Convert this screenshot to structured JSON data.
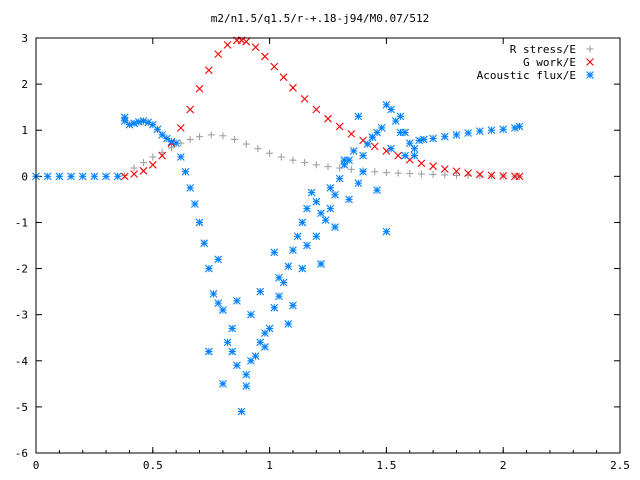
{
  "chart_data": {
    "type": "scatter",
    "title": "m2/n1.5/q1.5/r-+.18-j94/M0.07/512",
    "xlabel": "",
    "ylabel": "",
    "xlim": [
      0,
      2.5
    ],
    "ylim": [
      -6,
      3
    ],
    "x_ticks": [
      "0",
      "0.5",
      "1",
      "1.5",
      "2",
      "2.5"
    ],
    "y_ticks": [
      "3",
      "2",
      "1",
      "0",
      "-1",
      "-2",
      "-3",
      "-4",
      "-5",
      "-6"
    ],
    "legend_position": "top-right",
    "series": [
      {
        "name": "R stress/E",
        "marker": "plus",
        "color": "#a0a0a0",
        "x": [
          0.38,
          0.42,
          0.46,
          0.5,
          0.54,
          0.58,
          0.62,
          0.66,
          0.7,
          0.75,
          0.8,
          0.85,
          0.9,
          0.95,
          1.0,
          1.05,
          1.1,
          1.15,
          1.2,
          1.25,
          1.3,
          1.35,
          1.4,
          1.45,
          1.5,
          1.55,
          1.6,
          1.65,
          1.7,
          1.75,
          1.8,
          1.85,
          1.9,
          1.95,
          2.0,
          2.05,
          2.07
        ],
        "y": [
          0.02,
          0.18,
          0.3,
          0.42,
          0.52,
          0.62,
          0.72,
          0.8,
          0.86,
          0.9,
          0.88,
          0.8,
          0.7,
          0.6,
          0.5,
          0.42,
          0.35,
          0.3,
          0.25,
          0.21,
          0.18,
          0.15,
          0.12,
          0.1,
          0.08,
          0.07,
          0.06,
          0.05,
          0.04,
          0.03,
          0.02,
          0.02,
          0.01,
          0.01,
          0.01,
          0.0,
          0.0
        ]
      },
      {
        "name": "G work/E",
        "marker": "cross",
        "color": "#ff0000",
        "x": [
          0.38,
          0.42,
          0.46,
          0.5,
          0.54,
          0.58,
          0.62,
          0.66,
          0.7,
          0.74,
          0.78,
          0.82,
          0.86,
          0.88,
          0.9,
          0.94,
          0.98,
          1.02,
          1.06,
          1.1,
          1.15,
          1.2,
          1.25,
          1.3,
          1.35,
          1.4,
          1.45,
          1.5,
          1.55,
          1.6,
          1.65,
          1.7,
          1.75,
          1.8,
          1.85,
          1.9,
          1.95,
          2.0,
          2.05,
          2.07
        ],
        "y": [
          0.0,
          0.05,
          0.12,
          0.25,
          0.45,
          0.72,
          1.05,
          1.45,
          1.9,
          2.3,
          2.65,
          2.85,
          2.95,
          2.95,
          2.92,
          2.8,
          2.6,
          2.38,
          2.15,
          1.92,
          1.68,
          1.45,
          1.25,
          1.08,
          0.92,
          0.78,
          0.65,
          0.55,
          0.45,
          0.36,
          0.28,
          0.22,
          0.16,
          0.11,
          0.07,
          0.04,
          0.02,
          0.01,
          0.0,
          0.0
        ]
      },
      {
        "name": "Acoustic flux/E",
        "marker": "star",
        "color": "#0080ff",
        "x": [
          0.0,
          0.05,
          0.1,
          0.15,
          0.2,
          0.25,
          0.3,
          0.35,
          0.38,
          0.38,
          0.4,
          0.42,
          0.44,
          0.46,
          0.48,
          0.5,
          0.52,
          0.54,
          0.56,
          0.58,
          0.6,
          0.62,
          0.64,
          0.66,
          0.68,
          0.7,
          0.72,
          0.74,
          0.76,
          0.78,
          0.8,
          0.82,
          0.84,
          0.86,
          0.88,
          0.9,
          0.92,
          0.94,
          0.96,
          0.98,
          1.0,
          1.02,
          1.04,
          1.06,
          1.08,
          1.1,
          1.12,
          1.14,
          1.16,
          1.18,
          1.2,
          1.22,
          1.24,
          1.26,
          1.28,
          1.3,
          1.32,
          1.34,
          1.36,
          1.38,
          1.4,
          1.42,
          1.44,
          1.46,
          1.48,
          1.5,
          1.52,
          1.54,
          1.56,
          1.58,
          1.6,
          1.62,
          1.64,
          1.66,
          1.7,
          1.75,
          1.8,
          1.85,
          1.9,
          1.95,
          2.0,
          2.05,
          2.07,
          0.74,
          0.8,
          0.86,
          0.92,
          0.98,
          1.04,
          1.1,
          1.16,
          1.22,
          1.28,
          1.34,
          1.4,
          1.46,
          1.52,
          1.58,
          0.78,
          0.84,
          0.9,
          0.96,
          1.02,
          1.08,
          1.14,
          1.2,
          1.26,
          1.32,
          1.38,
          1.44,
          1.5,
          1.56,
          1.62
        ],
        "y": [
          0.0,
          0.0,
          0.0,
          0.0,
          0.0,
          0.0,
          0.0,
          0.0,
          1.28,
          1.2,
          1.12,
          1.15,
          1.18,
          1.2,
          1.17,
          1.12,
          1.02,
          0.9,
          0.82,
          0.75,
          0.72,
          0.42,
          0.1,
          -0.25,
          -0.6,
          -1.0,
          -1.45,
          -2.0,
          -2.55,
          -2.75,
          -2.9,
          -3.6,
          -3.8,
          -4.1,
          -5.1,
          -4.3,
          -4.0,
          -3.9,
          -3.6,
          -3.4,
          -3.3,
          -2.85,
          -2.6,
          -2.3,
          -1.95,
          -1.6,
          -1.3,
          -1.0,
          -0.7,
          -0.35,
          -0.55,
          -0.8,
          -0.95,
          -0.7,
          -0.4,
          -0.05,
          0.25,
          0.35,
          0.55,
          -0.15,
          0.45,
          0.7,
          0.85,
          0.95,
          1.05,
          1.55,
          1.45,
          1.2,
          1.3,
          0.95,
          0.72,
          0.6,
          0.78,
          0.8,
          0.82,
          0.86,
          0.9,
          0.94,
          0.98,
          1.0,
          1.02,
          1.05,
          1.08,
          -3.8,
          -4.5,
          -2.7,
          -3.0,
          -3.7,
          -2.2,
          -2.8,
          -1.5,
          -1.9,
          -1.1,
          -0.5,
          0.1,
          -0.3,
          0.6,
          0.45,
          -1.8,
          -3.3,
          -4.55,
          -2.5,
          -1.65,
          -3.2,
          -2.0,
          -1.3,
          -0.25,
          0.35,
          1.3,
          0.85,
          -1.2,
          0.95,
          0.45
        ]
      }
    ]
  }
}
